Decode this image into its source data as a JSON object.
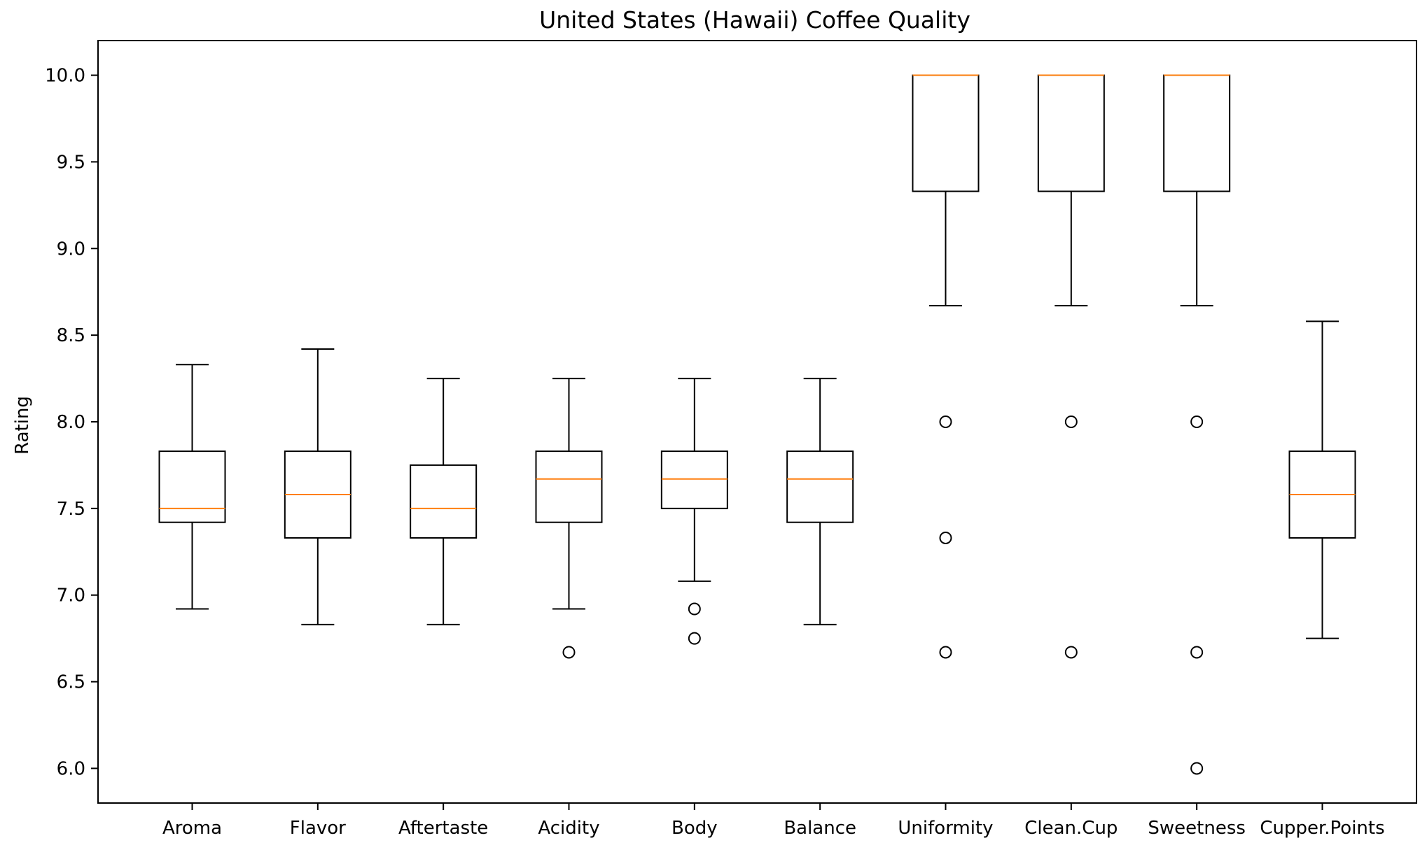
{
  "chart_data": {
    "type": "boxplot",
    "title": "United States (Hawaii) Coffee Quality",
    "xlabel": "",
    "ylabel": "Rating",
    "ylim": [
      5.8,
      10.2
    ],
    "yticks": [
      "6.0",
      "6.5",
      "7.0",
      "7.5",
      "8.0",
      "8.5",
      "9.0",
      "9.5",
      "10.0"
    ],
    "grid": false,
    "colors": {
      "box": "#000000",
      "median": "#ff7f0e"
    },
    "categories": [
      "Aroma",
      "Flavor",
      "Aftertaste",
      "Acidity",
      "Body",
      "Balance",
      "Uniformity",
      "Clean.Cup",
      "Sweetness",
      "Cupper.Points"
    ],
    "boxes": [
      {
        "whislo": 6.92,
        "q1": 7.42,
        "med": 7.5,
        "q3": 7.83,
        "whishi": 8.33,
        "fliers": []
      },
      {
        "whislo": 6.83,
        "q1": 7.33,
        "med": 7.58,
        "q3": 7.83,
        "whishi": 8.42,
        "fliers": []
      },
      {
        "whislo": 6.83,
        "q1": 7.33,
        "med": 7.5,
        "q3": 7.75,
        "whishi": 8.25,
        "fliers": []
      },
      {
        "whislo": 6.92,
        "q1": 7.42,
        "med": 7.67,
        "q3": 7.83,
        "whishi": 8.25,
        "fliers": [
          6.67
        ]
      },
      {
        "whislo": 7.08,
        "q1": 7.5,
        "med": 7.67,
        "q3": 7.83,
        "whishi": 8.25,
        "fliers": [
          6.92,
          6.75
        ]
      },
      {
        "whislo": 6.83,
        "q1": 7.42,
        "med": 7.67,
        "q3": 7.83,
        "whishi": 8.25,
        "fliers": []
      },
      {
        "whislo": 8.67,
        "q1": 9.33,
        "med": 10.0,
        "q3": 10.0,
        "whishi": 10.0,
        "fliers": [
          8.0,
          7.33,
          6.67
        ]
      },
      {
        "whislo": 8.67,
        "q1": 9.33,
        "med": 10.0,
        "q3": 10.0,
        "whishi": 10.0,
        "fliers": [
          8.0,
          6.67
        ]
      },
      {
        "whislo": 8.67,
        "q1": 9.33,
        "med": 10.0,
        "q3": 10.0,
        "whishi": 10.0,
        "fliers": [
          8.0,
          6.67,
          6.0
        ]
      },
      {
        "whislo": 6.75,
        "q1": 7.33,
        "med": 7.58,
        "q3": 7.83,
        "whishi": 8.58,
        "fliers": []
      }
    ]
  }
}
